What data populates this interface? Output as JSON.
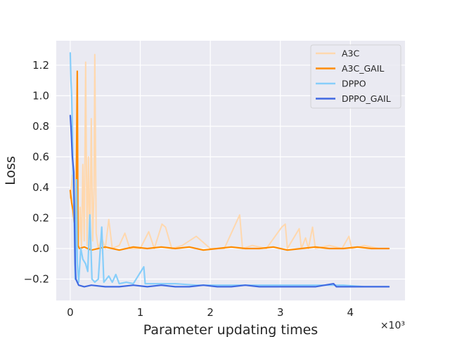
{
  "chart_data": {
    "type": "line",
    "title": "",
    "xlabel": "Parameter updating times",
    "ylabel": "Loss",
    "x_multiplier_label": "×10³",
    "xlim": [
      -0.2,
      4.78
    ],
    "ylim": [
      -0.34,
      1.36
    ],
    "x_ticks": [
      0,
      1,
      2,
      3,
      4
    ],
    "x_tick_labels": [
      "0",
      "1",
      "2",
      "3",
      "4"
    ],
    "y_ticks": [
      -0.2,
      0.0,
      0.2,
      0.4,
      0.6,
      0.8,
      1.0,
      1.2
    ],
    "y_tick_labels": [
      "−0.2",
      "0.0",
      "0.2",
      "0.4",
      "0.6",
      "0.8",
      "1.0",
      "1.2"
    ],
    "grid": true,
    "legend_position": "top-right",
    "series": [
      {
        "name": "A3C",
        "color": "#ffd8ae",
        "points": [
          [
            0.0,
            0.33
          ],
          [
            0.03,
            0.48
          ],
          [
            0.05,
            0.3
          ],
          [
            0.08,
            0.2
          ],
          [
            0.1,
            0.05
          ],
          [
            0.12,
            0.02
          ],
          [
            0.14,
            0.27
          ],
          [
            0.16,
            0.0
          ],
          [
            0.18,
            0.55
          ],
          [
            0.2,
            0.05
          ],
          [
            0.22,
            1.22
          ],
          [
            0.24,
            0.02
          ],
          [
            0.26,
            0.6
          ],
          [
            0.28,
            0.0
          ],
          [
            0.3,
            0.85
          ],
          [
            0.32,
            0.05
          ],
          [
            0.34,
            0.4
          ],
          [
            0.35,
            1.27
          ],
          [
            0.37,
            0.1
          ],
          [
            0.4,
            0.0
          ],
          [
            0.45,
            0.07
          ],
          [
            0.5,
            0.0
          ],
          [
            0.55,
            0.19
          ],
          [
            0.6,
            0.0
          ],
          [
            0.7,
            0.02
          ],
          [
            0.78,
            0.1
          ],
          [
            0.85,
            0.0
          ],
          [
            1.0,
            0.0
          ],
          [
            1.12,
            0.11
          ],
          [
            1.2,
            0.0
          ],
          [
            1.31,
            0.16
          ],
          [
            1.36,
            0.14
          ],
          [
            1.45,
            0.0
          ],
          [
            1.6,
            0.02
          ],
          [
            1.8,
            0.08
          ],
          [
            2.0,
            0.0
          ],
          [
            2.2,
            0.0
          ],
          [
            2.42,
            0.22
          ],
          [
            2.46,
            0.0
          ],
          [
            2.6,
            0.02
          ],
          [
            2.8,
            0.0
          ],
          [
            3.02,
            0.14
          ],
          [
            3.07,
            0.16
          ],
          [
            3.1,
            0.0
          ],
          [
            3.27,
            0.13
          ],
          [
            3.3,
            0.0
          ],
          [
            3.36,
            0.07
          ],
          [
            3.4,
            0.0
          ],
          [
            3.46,
            0.14
          ],
          [
            3.5,
            0.0
          ],
          [
            3.7,
            0.02
          ],
          [
            3.88,
            0.0
          ],
          [
            3.98,
            0.08
          ],
          [
            4.02,
            0.0
          ],
          [
            4.2,
            0.02
          ],
          [
            4.4,
            0.0
          ],
          [
            4.55,
            0.0
          ]
        ]
      },
      {
        "name": "A3C_GAIL",
        "color": "#ff8c00",
        "points": [
          [
            0.0,
            0.38
          ],
          [
            0.02,
            0.3
          ],
          [
            0.04,
            0.25
          ],
          [
            0.06,
            0.15
          ],
          [
            0.08,
            0.05
          ],
          [
            0.1,
            1.16
          ],
          [
            0.11,
            0.02
          ],
          [
            0.13,
            0.0
          ],
          [
            0.2,
            0.01
          ],
          [
            0.3,
            -0.01
          ],
          [
            0.5,
            0.01
          ],
          [
            0.7,
            -0.01
          ],
          [
            0.9,
            0.01
          ],
          [
            1.1,
            0.0
          ],
          [
            1.3,
            0.01
          ],
          [
            1.5,
            0.0
          ],
          [
            1.7,
            0.01
          ],
          [
            1.9,
            -0.01
          ],
          [
            2.1,
            0.0
          ],
          [
            2.3,
            0.01
          ],
          [
            2.5,
            0.0
          ],
          [
            2.7,
            0.0
          ],
          [
            2.9,
            0.01
          ],
          [
            3.1,
            -0.01
          ],
          [
            3.3,
            0.0
          ],
          [
            3.5,
            0.01
          ],
          [
            3.7,
            0.0
          ],
          [
            3.9,
            0.0
          ],
          [
            4.1,
            0.01
          ],
          [
            4.3,
            0.0
          ],
          [
            4.55,
            0.0
          ]
        ]
      },
      {
        "name": "DPPO",
        "color": "#87cefa",
        "points": [
          [
            0.0,
            1.28
          ],
          [
            0.01,
            1.1
          ],
          [
            0.02,
            1.0
          ],
          [
            0.03,
            0.8
          ],
          [
            0.04,
            0.5
          ],
          [
            0.06,
            0.1
          ],
          [
            0.07,
            -0.2
          ],
          [
            0.09,
            0.45
          ],
          [
            0.1,
            -0.1
          ],
          [
            0.12,
            -0.22
          ],
          [
            0.15,
            0.0
          ],
          [
            0.18,
            -0.07
          ],
          [
            0.22,
            -0.1
          ],
          [
            0.25,
            -0.15
          ],
          [
            0.28,
            0.22
          ],
          [
            0.31,
            -0.2
          ],
          [
            0.35,
            -0.22
          ],
          [
            0.4,
            -0.2
          ],
          [
            0.45,
            0.14
          ],
          [
            0.48,
            -0.22
          ],
          [
            0.55,
            -0.18
          ],
          [
            0.6,
            -0.22
          ],
          [
            0.65,
            -0.17
          ],
          [
            0.7,
            -0.23
          ],
          [
            0.8,
            -0.22
          ],
          [
            0.9,
            -0.23
          ],
          [
            1.05,
            -0.12
          ],
          [
            1.07,
            -0.23
          ],
          [
            1.2,
            -0.23
          ],
          [
            1.5,
            -0.23
          ],
          [
            1.8,
            -0.24
          ],
          [
            2.1,
            -0.24
          ],
          [
            2.4,
            -0.24
          ],
          [
            2.7,
            -0.24
          ],
          [
            3.0,
            -0.24
          ],
          [
            3.3,
            -0.24
          ],
          [
            3.6,
            -0.24
          ],
          [
            3.9,
            -0.24
          ],
          [
            4.2,
            -0.25
          ],
          [
            4.55,
            -0.25
          ]
        ]
      },
      {
        "name": "DPPO_GAIL",
        "color": "#4169e1",
        "points": [
          [
            0.0,
            0.87
          ],
          [
            0.01,
            0.8
          ],
          [
            0.02,
            0.7
          ],
          [
            0.03,
            0.6
          ],
          [
            0.04,
            0.55
          ],
          [
            0.05,
            0.5
          ],
          [
            0.06,
            0.2
          ],
          [
            0.07,
            -0.1
          ],
          [
            0.08,
            -0.2
          ],
          [
            0.1,
            -0.22
          ],
          [
            0.12,
            -0.24
          ],
          [
            0.2,
            -0.25
          ],
          [
            0.3,
            -0.24
          ],
          [
            0.5,
            -0.25
          ],
          [
            0.7,
            -0.25
          ],
          [
            0.9,
            -0.24
          ],
          [
            1.1,
            -0.25
          ],
          [
            1.3,
            -0.24
          ],
          [
            1.5,
            -0.25
          ],
          [
            1.7,
            -0.25
          ],
          [
            1.9,
            -0.24
          ],
          [
            2.1,
            -0.25
          ],
          [
            2.3,
            -0.25
          ],
          [
            2.5,
            -0.24
          ],
          [
            2.7,
            -0.25
          ],
          [
            2.9,
            -0.25
          ],
          [
            3.1,
            -0.25
          ],
          [
            3.3,
            -0.25
          ],
          [
            3.5,
            -0.25
          ],
          [
            3.76,
            -0.23
          ],
          [
            3.8,
            -0.25
          ],
          [
            4.0,
            -0.25
          ],
          [
            4.2,
            -0.25
          ],
          [
            4.4,
            -0.25
          ],
          [
            4.55,
            -0.25
          ]
        ]
      }
    ]
  }
}
